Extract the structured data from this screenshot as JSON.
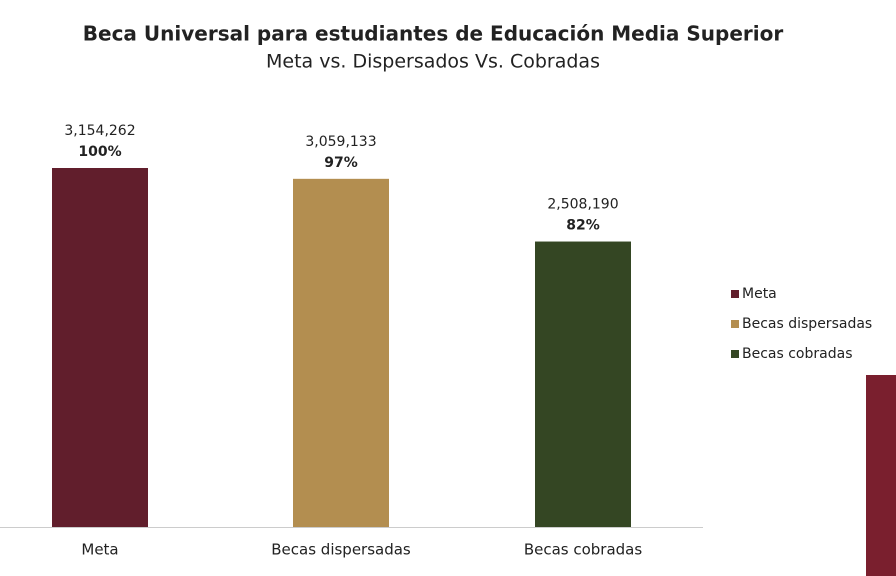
{
  "chart_data": {
    "type": "bar",
    "title": "Beca Universal para estudiantes de Educación Media Superior",
    "subtitle": "Meta vs. Dispersados Vs. Cobradas",
    "categories": [
      "Meta",
      "Becas dispersadas",
      "Becas cobradas"
    ],
    "values": [
      3154262,
      3059133,
      2508190
    ],
    "value_labels": [
      "3,154,262",
      "3,059,133",
      "2,508,190"
    ],
    "percents": [
      100,
      97,
      82
    ],
    "percent_labels": [
      "100%",
      "97%",
      "82%"
    ],
    "colors": [
      "#611e2c",
      "#b38e50",
      "#344623"
    ],
    "legend": "right"
  }
}
